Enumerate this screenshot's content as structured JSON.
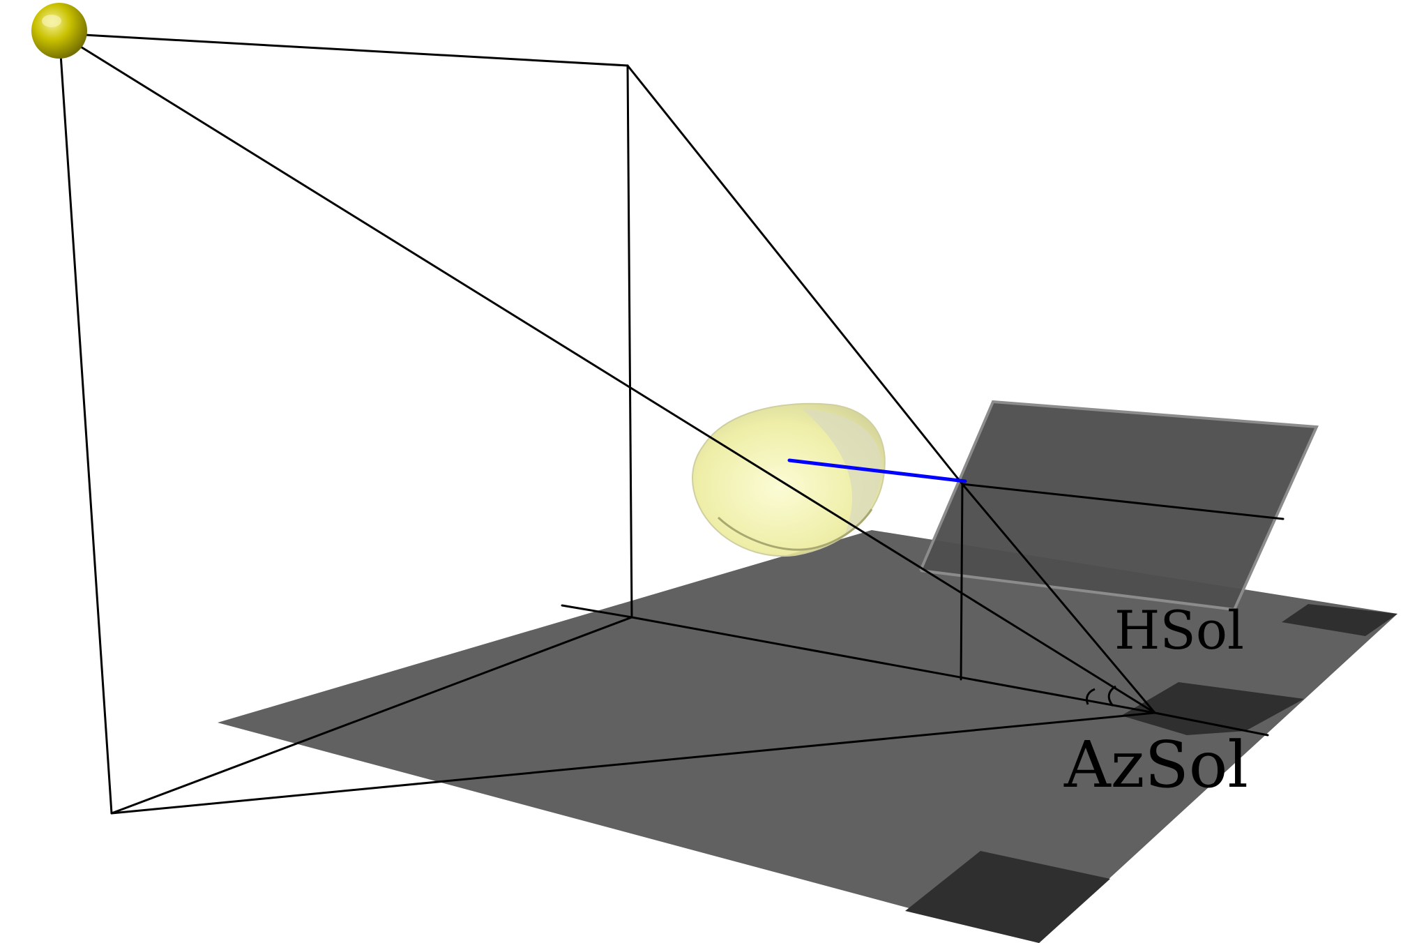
{
  "labels": {
    "altitude": "HSol",
    "azimuth": "AzSol"
  },
  "colors": {
    "background": "#ffffff",
    "ground": "#616161",
    "ground_corner": "#2f2f2f",
    "panel": "#4a4a4a",
    "panel_edge": "#8a8a8a",
    "line": "#000000",
    "sun": "#c8c000",
    "sun_highlight": "#f4f080",
    "hemisphere": "#efef9a",
    "hemisphere_edge": "#d6d6a8",
    "normal_vector": "#0000ff"
  }
}
